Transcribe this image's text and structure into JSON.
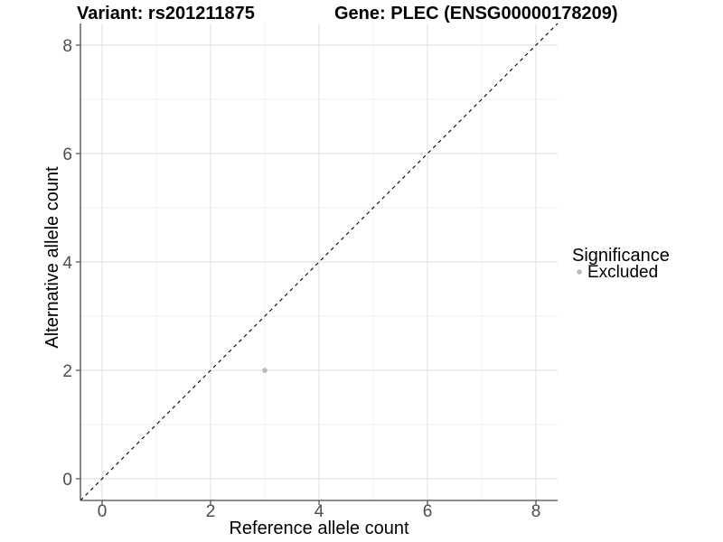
{
  "chart_data": {
    "type": "scatter",
    "title_left": "Variant: rs201211875",
    "title_right": "Gene: PLEC (ENSG00000178209)",
    "xlabel": "Reference allele count",
    "ylabel": "Alternative allele count",
    "xlim": [
      -0.4,
      8.4
    ],
    "ylim": [
      -0.4,
      8.4
    ],
    "xticks": [
      0,
      2,
      4,
      6,
      8
    ],
    "yticks": [
      0,
      2,
      4,
      6,
      8
    ],
    "xminor": [
      1,
      3,
      5,
      7
    ],
    "yminor": [
      1,
      3,
      5,
      7
    ],
    "grid": true,
    "identity_line": {
      "style": "dashed",
      "from_x": -0.4,
      "from_y": -0.4,
      "to_x": 8.4,
      "to_y": 8.4,
      "color": "#000000"
    },
    "series": [
      {
        "name": "Excluded",
        "color": "#b8b8b8",
        "points": [
          {
            "x": 3,
            "y": 2
          }
        ]
      }
    ],
    "legend": {
      "title": "Significance",
      "position": "right",
      "items": [
        {
          "label": "Excluded",
          "color": "#b8b8b8"
        }
      ]
    },
    "colors": {
      "background": "#ffffff",
      "axis_line": "#4a4a4a",
      "tick_mark": "#4a4a4a",
      "tick_label": "#4d4d4d",
      "grid_major": "#e5e5e5",
      "grid_minor": "#efefef",
      "title": "#000000"
    }
  }
}
